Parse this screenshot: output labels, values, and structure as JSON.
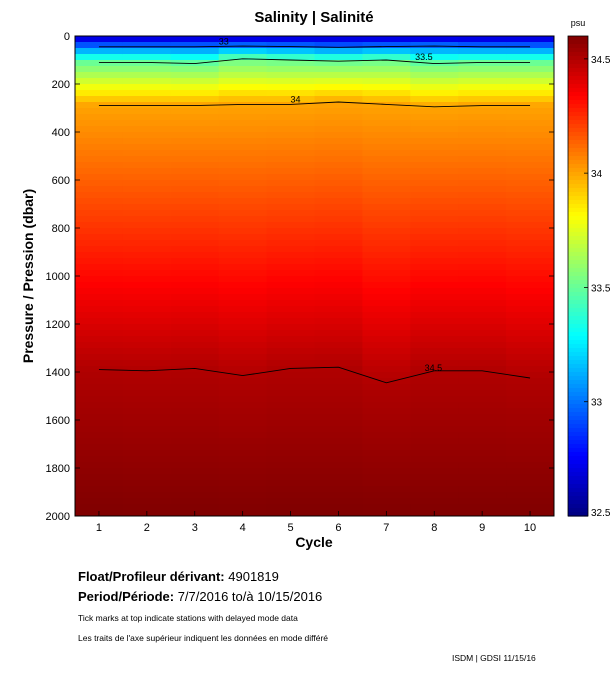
{
  "chart_data": {
    "type": "heatmap",
    "title": "Salinity | Salinité",
    "xlabel": "Cycle",
    "ylabel": "Pressure / Pression (dbar)",
    "x": [
      1,
      2,
      3,
      4,
      5,
      6,
      7,
      8,
      9,
      10
    ],
    "xlim": [
      0.5,
      10.5
    ],
    "ylim": [
      0,
      2000
    ],
    "y_reversed": true,
    "xticks": [
      "1",
      "2",
      "3",
      "4",
      "5",
      "6",
      "7",
      "8",
      "9",
      "10"
    ],
    "yticks": [
      "0",
      "200",
      "400",
      "600",
      "800",
      "1000",
      "1200",
      "1400",
      "1600",
      "1800",
      "2000"
    ],
    "colorbar": {
      "unit": "psu",
      "range": [
        32.5,
        34.6
      ],
      "ticks": [
        "32.5",
        "33",
        "33.5",
        "34",
        "34.5"
      ],
      "tick_values": [
        32.5,
        33,
        33.5,
        34,
        34.5
      ]
    },
    "contours": [
      {
        "level": "33",
        "label": "33",
        "label_cycle": 3.5,
        "pressure": [
          45,
          45,
          45,
          42,
          44,
          47,
          44,
          42,
          45,
          45
        ]
      },
      {
        "level": "33.5",
        "label": "33.5",
        "label_cycle": 7.6,
        "pressure": [
          110,
          110,
          115,
          95,
          100,
          105,
          100,
          115,
          110,
          110
        ]
      },
      {
        "level": "34",
        "label": "34",
        "label_cycle": 5.0,
        "pressure": [
          290,
          290,
          290,
          285,
          285,
          275,
          285,
          295,
          290,
          290
        ]
      },
      {
        "level": "34.5",
        "label": "34.5",
        "label_cycle": 7.8,
        "pressure": [
          1390,
          1395,
          1385,
          1415,
          1385,
          1380,
          1445,
          1395,
          1395,
          1425
        ]
      }
    ],
    "grid": false,
    "legend": "colorbar-right"
  },
  "info": {
    "float_label": "Float/Profileur dérivant:",
    "float_id": "4901819",
    "period_label": "Period/Période:",
    "period_value": "7/7/2016  to/à  10/15/2016",
    "note_en": "Tick marks at top indicate stations with delayed mode data",
    "note_fr": "Les traits de l'axe supérieur indiquent les données en mode différé",
    "credit": "ISDM | GDSI  11/15/16"
  }
}
